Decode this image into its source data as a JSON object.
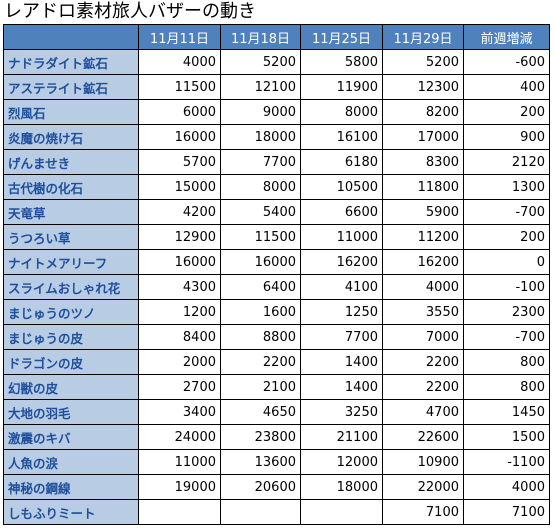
{
  "title": "レアドロ素材旅人バザーの動き",
  "table": {
    "header": [
      null,
      "11月11日",
      "11月18日",
      "11月25日",
      "11月29日",
      "前週増減"
    ],
    "rows": [
      [
        "ナドラダイト鉱石",
        4000,
        5200,
        5800,
        5200,
        -600
      ],
      [
        "アステライト鉱石",
        11500,
        12100,
        11900,
        12300,
        400
      ],
      [
        "烈風石",
        6000,
        9000,
        8000,
        8200,
        200
      ],
      [
        "炎魔の焼け石",
        16000,
        18000,
        16100,
        17000,
        900
      ],
      [
        "げんませき",
        5700,
        7700,
        6180,
        8300,
        2120
      ],
      [
        "古代樹の化石",
        15000,
        8000,
        10500,
        11800,
        1300
      ],
      [
        "天竜草",
        4200,
        5400,
        6600,
        5900,
        -700
      ],
      [
        "うつろい草",
        12900,
        11500,
        11000,
        11200,
        200
      ],
      [
        "ナイトメアリーフ",
        16000,
        16000,
        16200,
        16200,
        0
      ],
      [
        "スライムおしゃれ花",
        4300,
        6400,
        4100,
        4000,
        -100
      ],
      [
        "まじゅうのツノ",
        1200,
        1600,
        1250,
        3550,
        2300
      ],
      [
        "まじゅうの皮",
        8400,
        8800,
        7700,
        7000,
        -700
      ],
      [
        "ドラゴンの皮",
        2000,
        2200,
        1400,
        2200,
        800
      ],
      [
        "幻獣の皮",
        2700,
        2100,
        1400,
        2200,
        800
      ],
      [
        "大地の羽毛",
        3400,
        4650,
        3250,
        4700,
        1450
      ],
      [
        "激震のキバ",
        24000,
        23800,
        21100,
        22600,
        1500
      ],
      [
        "人魚の涙",
        11000,
        13600,
        12000,
        10900,
        -1100
      ],
      [
        "神秘の鋼線",
        19000,
        20600,
        18000,
        22000,
        4000
      ],
      [
        "しもふりミート",
        null,
        null,
        null,
        7100,
        7100
      ]
    ]
  }
}
